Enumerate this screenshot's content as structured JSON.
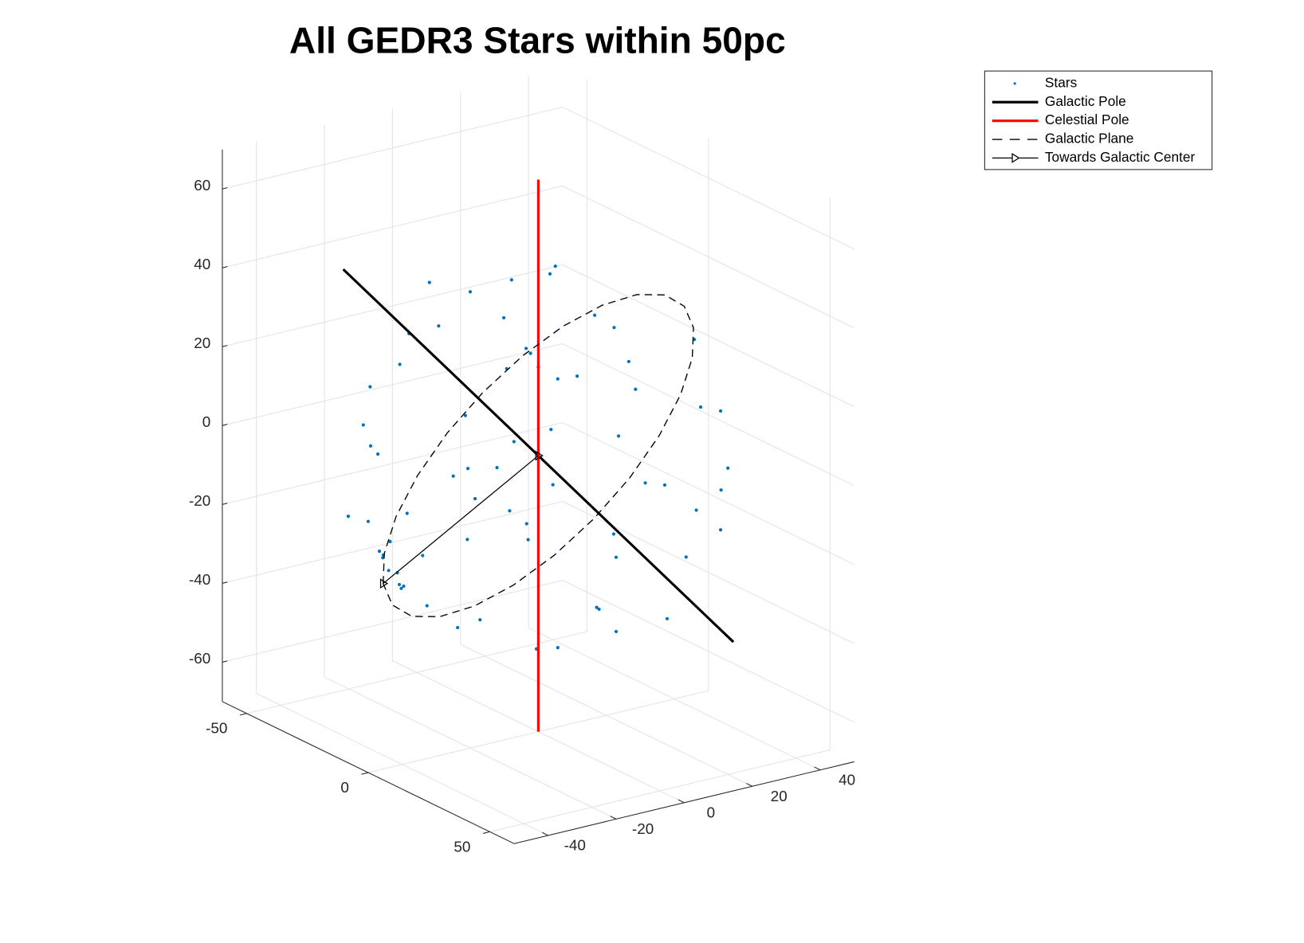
{
  "chart_data": {
    "type": "scatter3d",
    "title": "All GEDR3 Stars within 50pc",
    "xlim": [
      -60,
      60
    ],
    "ylim": [
      -50,
      50
    ],
    "zlim": [
      -70,
      70
    ],
    "xticks": [
      -50,
      0,
      50
    ],
    "yticks": [
      -40,
      -20,
      0,
      20,
      40
    ],
    "zticks": [
      -60,
      -40,
      -20,
      0,
      20,
      40,
      60
    ],
    "grid": true,
    "legend": "northeast",
    "series": [
      {
        "name": "Stars",
        "color": "#0072bd",
        "marker": "point",
        "line_style": "none",
        "x": [
          12,
          -25,
          30,
          -5,
          40,
          -38,
          8,
          -15,
          22,
          0,
          -30,
          18,
          -42,
          35,
          -10,
          5,
          -20,
          26,
          -8,
          14,
          -33,
          44,
          -3,
          28,
          -45,
          10,
          -18,
          33,
          -22,
          6,
          -12,
          38,
          -35,
          15,
          -40,
          20,
          -6,
          45,
          -28,
          2,
          25,
          -16,
          36,
          -44,
          11,
          -30,
          0,
          -12,
          30,
          -20,
          -2,
          -5,
          0,
          -4,
          2,
          -8,
          -1,
          -6,
          40,
          -10,
          15,
          -35,
          22,
          -2,
          8,
          -25,
          32,
          -40,
          18,
          -15
        ],
        "y": [
          -30,
          10,
          25,
          -40,
          -5,
          20,
          42,
          -22,
          -10,
          5,
          -30,
          33,
          -8,
          -28,
          30,
          -12,
          5,
          8,
          -35,
          -44,
          35,
          12,
          20,
          -20,
          -15,
          15,
          -8,
          30,
          38,
          -28,
          12,
          -10,
          -25,
          45,
          10,
          -35,
          -45,
          5,
          -12,
          -2,
          20,
          28,
          -22,
          -18,
          -18,
          18,
          -25,
          -30,
          10,
          -15,
          -40,
          -42,
          -44,
          -38,
          -41,
          -40,
          -46,
          -36,
          25,
          -5,
          -5,
          5,
          38,
          30,
          -8,
          -38,
          0,
          25,
          -30,
          15
        ],
        "z": [
          20,
          35,
          -10,
          -15,
          18,
          -12,
          6,
          -38,
          -40,
          47,
          5,
          28,
          20,
          -5,
          -35,
          -10,
          15,
          30,
          28,
          -12,
          3,
          -15,
          -44,
          35,
          -10,
          -20,
          -25,
          15,
          18,
          -36,
          40,
          -25,
          -22,
          -8,
          -25,
          10,
          10,
          5,
          38,
          -48,
          -38,
          25,
          22,
          8,
          42,
          -30,
          0,
          -12,
          0,
          30,
          -22,
          -18,
          -20,
          -26,
          -24,
          -20,
          -15,
          -28,
          -12,
          -5,
          25,
          30,
          -10,
          10,
          30,
          -15,
          -35,
          10,
          -30,
          -15
        ]
      },
      {
        "name": "Galactic Pole",
        "color": "#000000",
        "marker": "none",
        "line_style": "solid",
        "line_width": 3,
        "x": [
          -60.8,
          60.8
        ],
        "y": [
          -13.9,
          13.9
        ],
        "z": [
          31.9,
          -31.9
        ]
      },
      {
        "name": "Celestial Pole",
        "color": "#ff0000",
        "marker": "none",
        "line_style": "solid",
        "line_width": 3,
        "x": [
          0,
          0
        ],
        "y": [
          0,
          0
        ],
        "z": [
          -70,
          70
        ]
      },
      {
        "name": "Galactic Plane",
        "color": "#000000",
        "marker": "none",
        "line_style": "dashed",
        "line_width": 1.3,
        "x": [
          -2.75,
          3.74,
          9.97,
          15.52,
          20.01,
          23.15,
          24.7,
          24.57,
          22.77,
          19.4,
          14.73,
          9.06,
          2.75,
          -3.74,
          -9.97,
          -15.52,
          -20.01,
          -23.15,
          -24.7,
          -24.57,
          -22.77,
          -19.4,
          -14.73,
          -9.06,
          -2.75
        ],
        "y": [
          -43.65,
          -47.93,
          -48.93,
          -46.59,
          -41.1,
          -32.8,
          -22.25,
          -10.18,
          2.56,
          15.13,
          26.67,
          36.41,
          43.65,
          47.93,
          48.93,
          46.59,
          41.1,
          32.8,
          22.25,
          10.18,
          -2.56,
          -15.13,
          -26.67,
          -36.41,
          -43.65
        ],
        "z": [
          -24.2,
          -13.71,
          -2.28,
          9.3,
          20.25,
          29.81,
          37.35,
          42.35,
          44.45,
          43.52,
          39.64,
          33.05,
          24.2,
          13.71,
          2.28,
          -9.3,
          -20.25,
          -29.81,
          -37.35,
          -42.35,
          -44.45,
          -43.52,
          -39.64,
          -33.05,
          -24.2
        ]
      },
      {
        "name": "Towards Galactic Center",
        "color": "#000000",
        "marker": "triangle",
        "line_style": "solid",
        "line_width": 1.2,
        "x": [
          0,
          -2.75
        ],
        "y": [
          0,
          -43.65
        ],
        "z": [
          0,
          -24.2
        ]
      }
    ]
  }
}
